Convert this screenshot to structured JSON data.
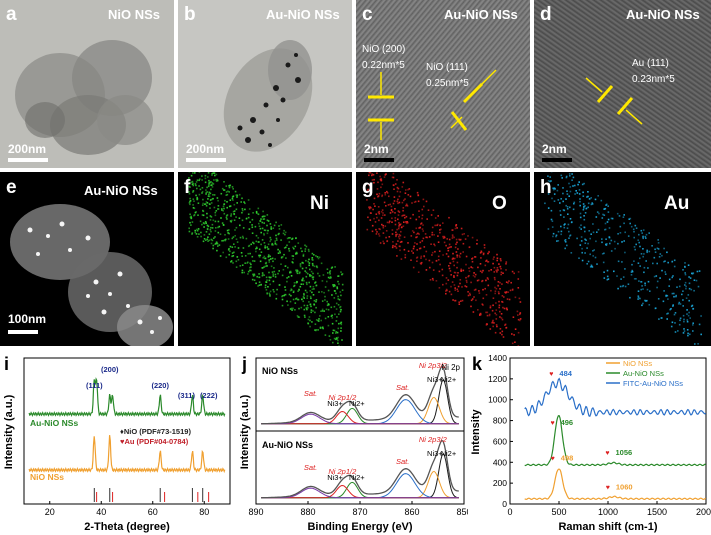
{
  "panels": {
    "a": {
      "label": "a",
      "title": "NiO NSs",
      "scale": "200nm"
    },
    "b": {
      "label": "b",
      "title": "Au-NiO NSs",
      "scale": "200nm"
    },
    "c": {
      "label": "c",
      "title": "Au-NiO NSs",
      "ann1": "NiO (200)",
      "ann2": "0.22nm*5",
      "ann3": "NiO (111)",
      "ann4": "0.25nm*5",
      "scale": "2nm"
    },
    "d": {
      "label": "d",
      "title": "Au-NiO NSs",
      "ann1": "Au (111)",
      "ann2": "0.23nm*5",
      "scale": "2nm"
    },
    "e": {
      "label": "e",
      "title": "Au-NiO NSs",
      "scale": "100nm"
    },
    "f": {
      "label": "f",
      "element": "Ni",
      "color": "#2fd02f"
    },
    "g": {
      "label": "g",
      "element": "O",
      "color": "#e02020"
    },
    "h": {
      "label": "h",
      "element": "Au",
      "color": "#1aa6d8"
    },
    "i": {
      "label": "i"
    },
    "j": {
      "label": "j"
    },
    "k": {
      "label": "k"
    }
  },
  "chart_data": [
    {
      "type": "line",
      "panel": "i",
      "xlabel": "2-Theta (degree)",
      "ylabel": "Intensity (a.u.)",
      "xlim": [
        10,
        90
      ],
      "xticks": [
        20,
        40,
        60,
        80
      ],
      "series": [
        {
          "name": "Au-NiO NSs",
          "color": "#2b8a2b",
          "peaks": [
            37.3,
            38.2,
            43.3,
            44.4,
            62.9,
            75.4,
            79.4
          ]
        },
        {
          "name": "NiO NSs",
          "color": "#f0a030",
          "peaks": [
            37.3,
            43.3,
            62.9,
            75.4,
            79.4
          ]
        }
      ],
      "peak_labels": [
        "(111)",
        "(200)",
        "(220)",
        "(311)",
        "(222)"
      ],
      "legend": [
        "NiO (PDF#73-1519)",
        "Au (PDF#04-0784)"
      ],
      "ref_nio": [
        37.3,
        43.3,
        62.9,
        75.4,
        79.4
      ],
      "ref_au": [
        38.2,
        44.4,
        64.6,
        77.5,
        81.7
      ]
    },
    {
      "type": "line",
      "panel": "j",
      "xlabel": "Binding Energy (eV)",
      "ylabel": "Intensity (a.u.)",
      "xlim": [
        890,
        850
      ],
      "xticks": [
        890,
        880,
        870,
        860,
        850
      ],
      "subtitle": "Ni 2p",
      "series": [
        {
          "name": "NiO NSs"
        },
        {
          "name": "Au-NiO NSs"
        }
      ],
      "annotations": [
        "Sat.",
        "Ni 2p1/2",
        "Ni3+",
        "Ni2+",
        "Sat.",
        "Ni3+",
        "Ni2+",
        "Ni 2p3/2"
      ]
    },
    {
      "type": "line",
      "panel": "k",
      "xlabel": "Raman shift (cm-1)",
      "ylabel": "Intensity",
      "xlim": [
        0,
        2000
      ],
      "ylim": [
        0,
        1400
      ],
      "xticks": [
        0,
        500,
        1000,
        1500,
        2000
      ],
      "yticks": [
        0,
        200,
        400,
        600,
        800,
        1000,
        1200,
        1400
      ],
      "series": [
        {
          "name": "NiO NSs",
          "color": "#f0a030",
          "base": 50,
          "peak": 498,
          "peak_height": 340,
          "second_peak": 1060
        },
        {
          "name": "Au-NiO NSs",
          "color": "#2b8a2b",
          "base": 375,
          "peak": 496,
          "peak_height": 850,
          "second_peak": 1056
        },
        {
          "name": "FITC-Au-NiO NSs",
          "color": "#2a6fc8",
          "base": 880,
          "peak": 484,
          "peak_height": 1160
        }
      ],
      "peak_labels": [
        "484",
        "496",
        "1056",
        "498",
        "1060"
      ]
    }
  ]
}
